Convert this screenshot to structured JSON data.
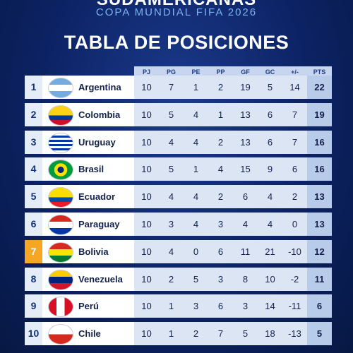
{
  "header": {
    "top": "SUDAMERICANAS",
    "subtitle": "COPA MUNDIAL FIFA 2026",
    "title": "TABLA DE POSICIONES"
  },
  "table": {
    "columns": [
      "PJ",
      "PG",
      "PE",
      "PP",
      "GF",
      "GC",
      "+/-",
      "PTS"
    ],
    "rows": [
      {
        "pos": 1,
        "team": "Argentina",
        "stats": [
          10,
          7,
          1,
          2,
          19,
          5,
          14,
          22
        ]
      },
      {
        "pos": 2,
        "team": "Colombia",
        "stats": [
          10,
          5,
          4,
          1,
          13,
          6,
          7,
          19
        ]
      },
      {
        "pos": 3,
        "team": "Uruguay",
        "stats": [
          10,
          4,
          4,
          2,
          13,
          6,
          7,
          16
        ]
      },
      {
        "pos": 4,
        "team": "Brasil",
        "stats": [
          10,
          5,
          1,
          4,
          15,
          9,
          6,
          16
        ]
      },
      {
        "pos": 5,
        "team": "Ecuador",
        "stats": [
          10,
          4,
          4,
          2,
          6,
          4,
          2,
          13
        ]
      },
      {
        "pos": 6,
        "team": "Paraguay",
        "stats": [
          10,
          3,
          4,
          3,
          4,
          4,
          0,
          13
        ]
      },
      {
        "pos": 7,
        "team": "Bolivia",
        "stats": [
          10,
          4,
          0,
          6,
          11,
          21,
          -10,
          12
        ]
      },
      {
        "pos": 8,
        "team": "Venezuela",
        "stats": [
          10,
          2,
          5,
          3,
          8,
          10,
          -2,
          11
        ]
      },
      {
        "pos": 9,
        "team": "Perú",
        "stats": [
          10,
          1,
          3,
          6,
          3,
          14,
          -11,
          6
        ]
      },
      {
        "pos": 10,
        "team": "Chile",
        "stats": [
          10,
          1,
          2,
          7,
          5,
          18,
          -13,
          5
        ]
      }
    ]
  }
}
